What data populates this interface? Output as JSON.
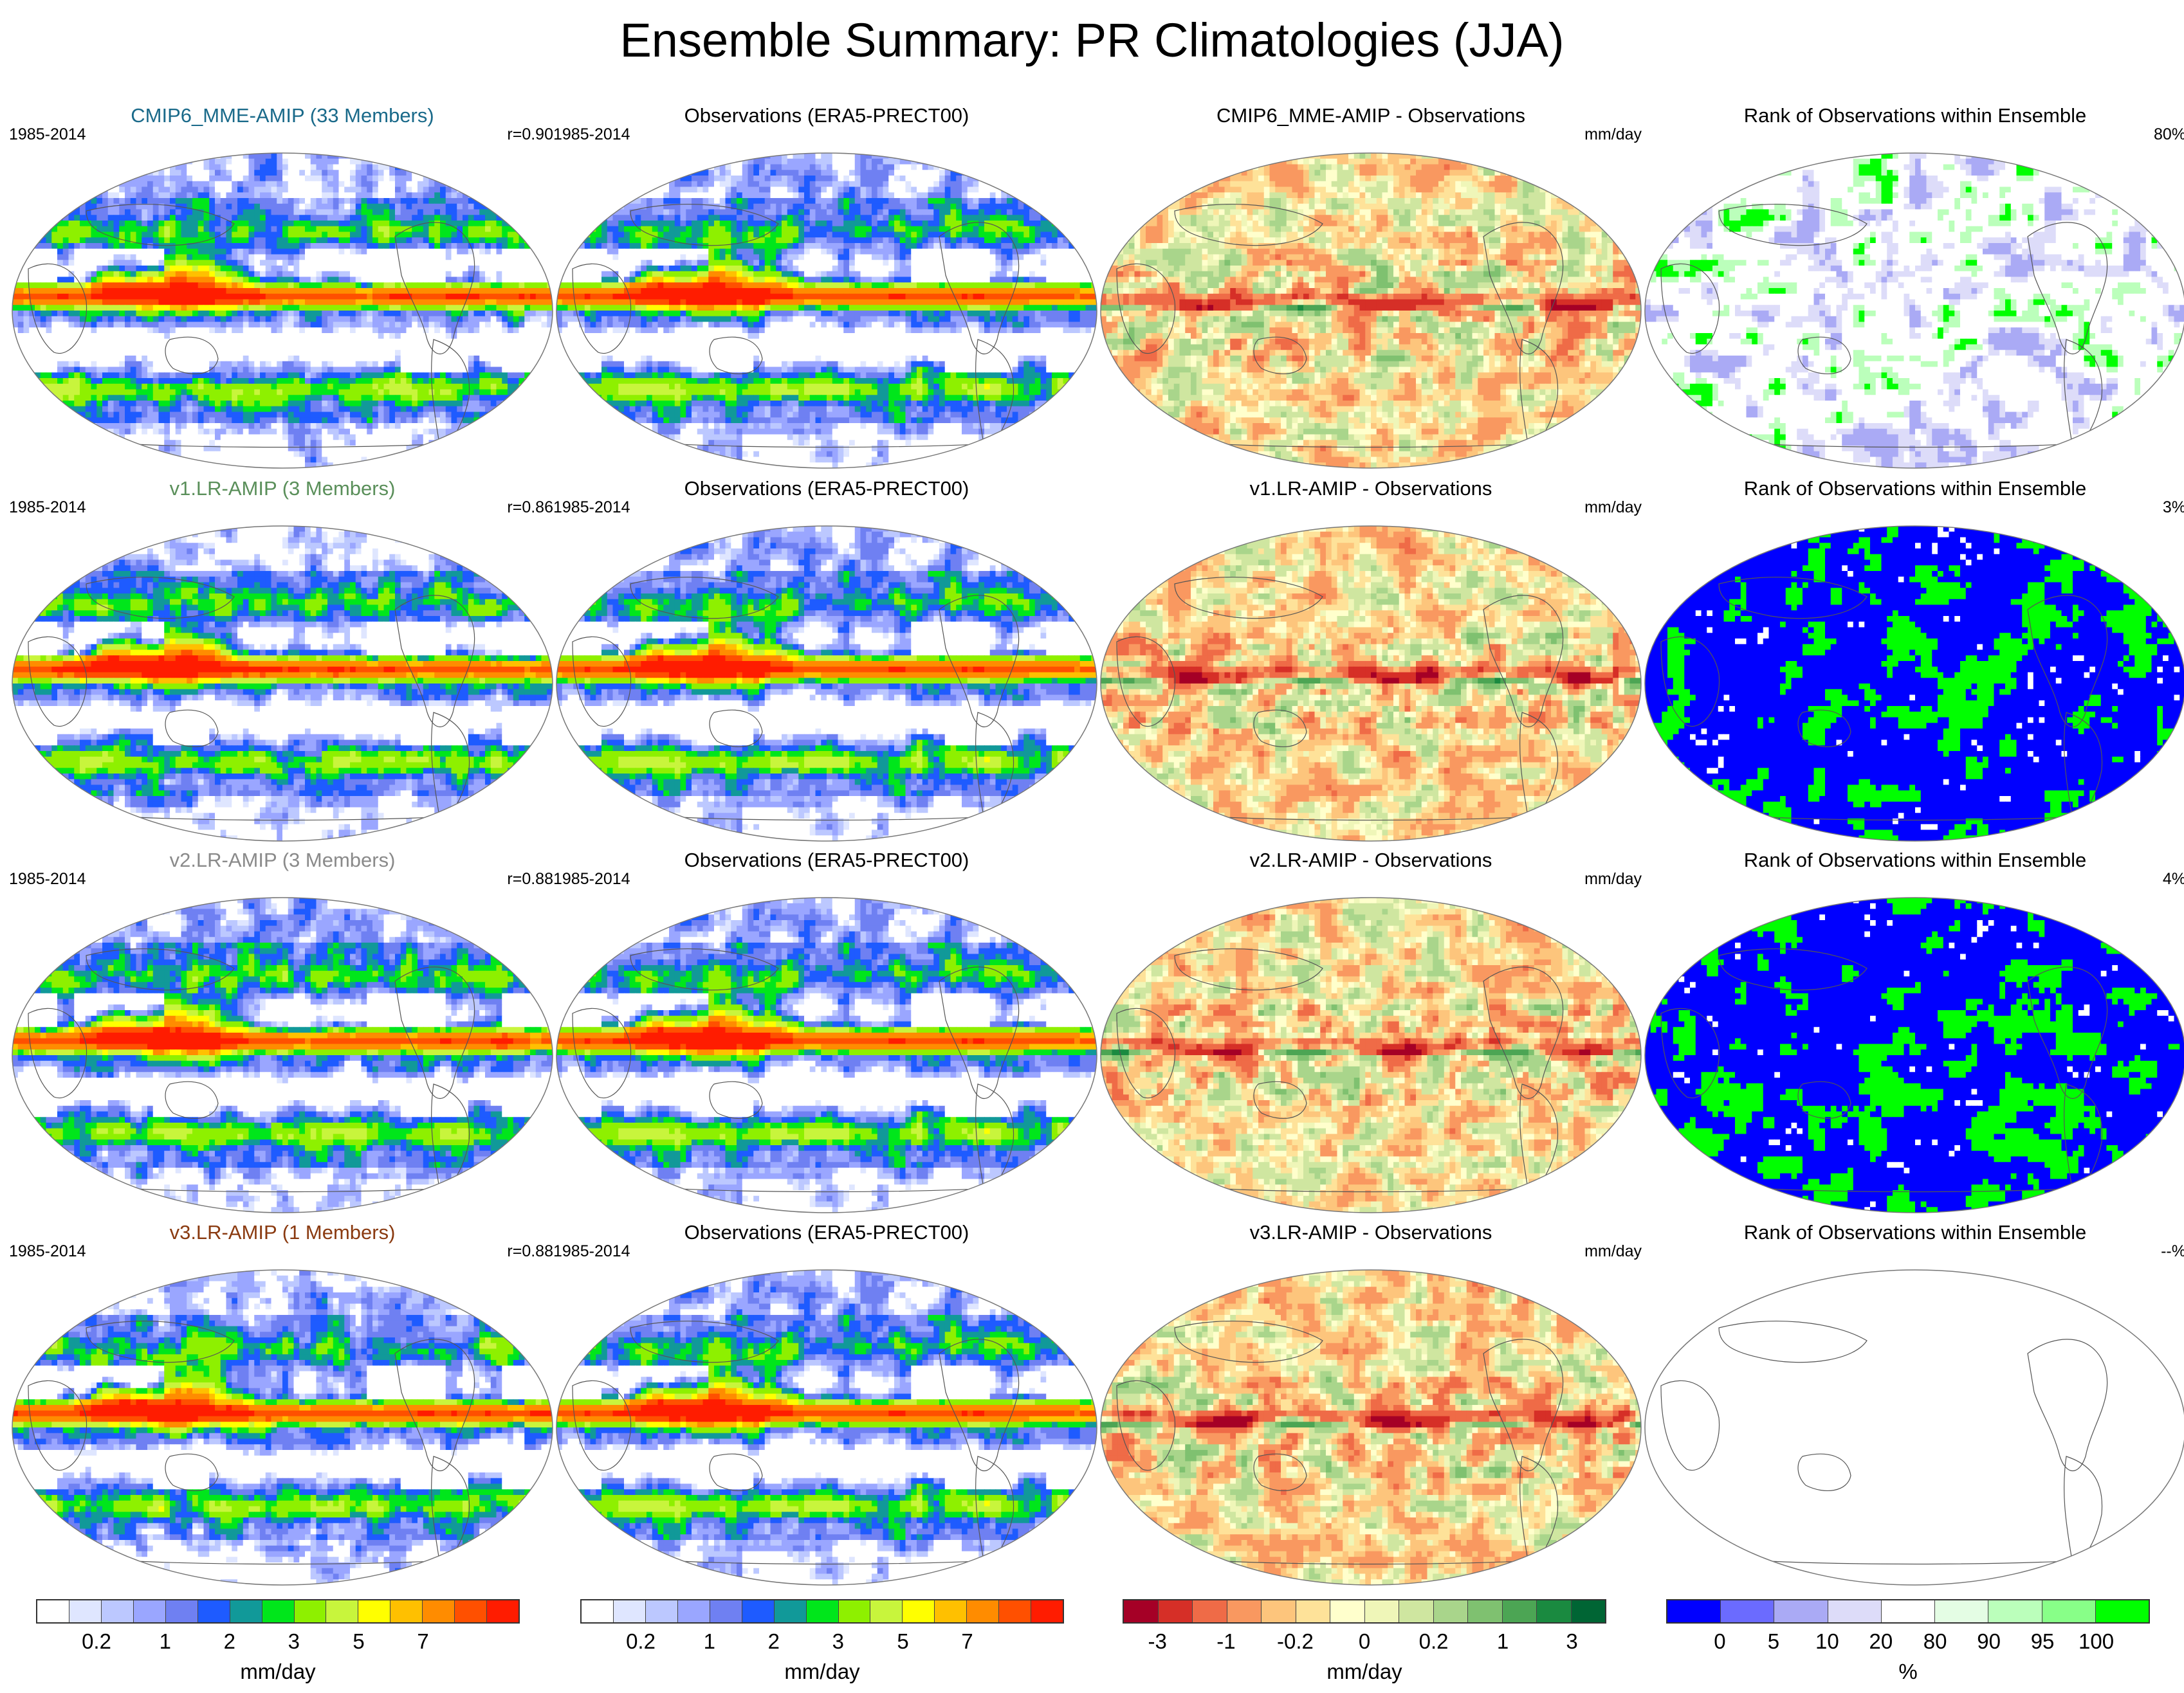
{
  "title": "Ensemble Summary: PR Climatologies (JJA)",
  "rows": [
    {
      "model": {
        "title": "CMIP6_MME-AMIP (33 Members)",
        "title_color": "#1a6a8a",
        "period": "1985-2014",
        "corr": "r=0.90"
      },
      "obs": {
        "title": "Observations (ERA5-PRECT00)",
        "period": "1985-2014"
      },
      "diff": {
        "title": "CMIP6_MME-AMIP - Observations",
        "units": "mm/day"
      },
      "rank": {
        "title": "Rank of Observations within Ensemble",
        "percent": "80%",
        "mode": "light"
      }
    },
    {
      "model": {
        "title": "v1.LR-AMIP (3 Members)",
        "title_color": "#5a8f5a",
        "period": "1985-2014",
        "corr": "r=0.86"
      },
      "obs": {
        "title": "Observations (ERA5-PRECT00)",
        "period": "1985-2014"
      },
      "diff": {
        "title": "v1.LR-AMIP - Observations",
        "units": "mm/day"
      },
      "rank": {
        "title": "Rank of Observations within Ensemble",
        "percent": "3%",
        "mode": "blue"
      }
    },
    {
      "model": {
        "title": "v2.LR-AMIP (3 Members)",
        "title_color": "#8a8a8a",
        "period": "1985-2014",
        "corr": "r=0.88"
      },
      "obs": {
        "title": "Observations (ERA5-PRECT00)",
        "period": "1985-2014"
      },
      "diff": {
        "title": "v2.LR-AMIP - Observations",
        "units": "mm/day"
      },
      "rank": {
        "title": "Rank of Observations within Ensemble",
        "percent": "4%",
        "mode": "blue"
      }
    },
    {
      "model": {
        "title": "v3.LR-AMIP (1 Members)",
        "title_color": "#8a3a10",
        "period": "1985-2014",
        "corr": "r=0.88"
      },
      "obs": {
        "title": "Observations (ERA5-PRECT00)",
        "period": "1985-2014"
      },
      "diff": {
        "title": "v3.LR-AMIP - Observations",
        "units": "mm/day"
      },
      "rank": {
        "title": "Rank of Observations within Ensemble",
        "percent": "--%",
        "mode": "empty"
      }
    }
  ],
  "colorbars": {
    "precip": {
      "colors": [
        "#ffffff",
        "#dfe6ff",
        "#bcc8ff",
        "#9aa6ff",
        "#6f80f2",
        "#1e5bff",
        "#119999",
        "#00e61b",
        "#8ef000",
        "#c8f53c",
        "#ffff00",
        "#ffc000",
        "#ff8c00",
        "#ff5000",
        "#ff1c00"
      ],
      "ticks": [
        "0.2",
        "1",
        "2",
        "3",
        "5",
        "7"
      ],
      "units": "mm/day"
    },
    "diff": {
      "colors": [
        "#a50026",
        "#d62f27",
        "#ef6b47",
        "#f99860",
        "#fdc57c",
        "#fee299",
        "#ffffcc",
        "#eff6b8",
        "#cfe6a0",
        "#a9d58b",
        "#7fc170",
        "#4ca554",
        "#1a8a40",
        "#006534"
      ],
      "ticks": [
        "-3",
        "-1",
        "-0.2",
        "0",
        "0.2",
        "1",
        "3"
      ],
      "units": "mm/day"
    },
    "rank": {
      "colors": [
        "#0000ff",
        "#6b6bff",
        "#aaaaf5",
        "#dddcf9",
        "#ffffff",
        "#e4fde4",
        "#bbffbb",
        "#88ff88",
        "#00ff00"
      ],
      "ticks": [
        "0",
        "5",
        "10",
        "20",
        "80",
        "90",
        "95",
        "100"
      ],
      "units": "%"
    }
  }
}
